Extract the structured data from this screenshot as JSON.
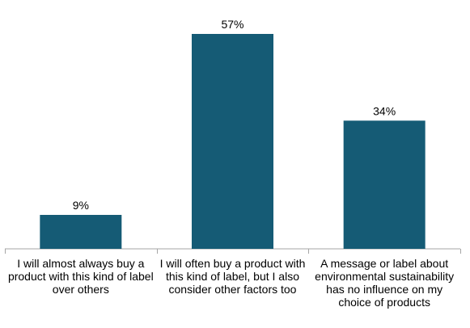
{
  "chart_data": {
    "type": "bar",
    "categories": [
      "I will almost always buy a product with this kind of label over others",
      "I will often buy a product with this kind of label, but I also consider other factors too",
      "A message or label about environmental sustainability has no influence on my choice of products"
    ],
    "values": [
      9,
      57,
      34
    ],
    "value_labels": [
      "9%",
      "57%",
      "34%"
    ],
    "unit": "%",
    "ylim": [
      0,
      60
    ],
    "grid": false,
    "bar_color": "#155b75",
    "title": "",
    "xlabel": "",
    "ylabel": ""
  }
}
